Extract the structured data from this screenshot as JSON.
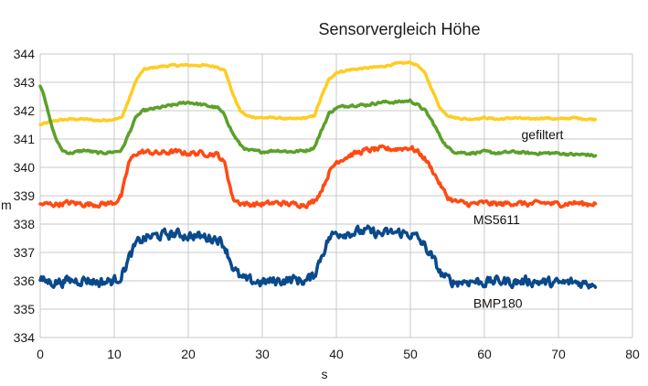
{
  "chart_data": {
    "type": "line",
    "title": "Sensorvergleich Höhe",
    "xlabel": "s",
    "ylabel": "m",
    "xlim": [
      0,
      80
    ],
    "ylim": [
      334,
      344
    ],
    "x_ticks": [
      0,
      10,
      20,
      30,
      40,
      50,
      60,
      70,
      80
    ],
    "y_ticks": [
      334,
      335,
      336,
      337,
      338,
      339,
      340,
      341,
      342,
      343,
      344
    ],
    "grid": true,
    "legend": "none",
    "annotations": [
      {
        "text": "gefiltert",
        "x": 65,
        "y": 341.0
      },
      {
        "text": "MS5611",
        "x": 58.5,
        "y": 338.0
      },
      {
        "text": "BMP180",
        "x": 58.5,
        "y": 335.05
      }
    ],
    "series": [
      {
        "color": "#ffcc22",
        "width": 3.5,
        "x": [
          0,
          2,
          4,
          6,
          8,
          10,
          11,
          12,
          13,
          14,
          16,
          18,
          20,
          22,
          24,
          25,
          26,
          27,
          28,
          30,
          32,
          34,
          36,
          37,
          38,
          39,
          40,
          42,
          44,
          46,
          48,
          50,
          51,
          52,
          53,
          54,
          55,
          56,
          58,
          60,
          62,
          64,
          66,
          68,
          70,
          72,
          74,
          75
        ],
        "values": [
          341.5,
          341.65,
          341.7,
          341.7,
          341.65,
          341.7,
          341.75,
          342.4,
          343.1,
          343.45,
          343.55,
          343.6,
          343.6,
          343.6,
          343.55,
          343.4,
          342.6,
          342.0,
          341.8,
          341.75,
          341.75,
          341.7,
          341.75,
          341.8,
          342.5,
          343.1,
          343.35,
          343.45,
          343.5,
          343.55,
          343.65,
          343.7,
          343.6,
          343.3,
          342.7,
          342.1,
          341.85,
          341.75,
          341.7,
          341.75,
          341.7,
          341.75,
          341.7,
          341.75,
          341.7,
          341.75,
          341.7,
          341.7
        ],
        "noise": 0.05
      },
      {
        "color": "#5aa02a",
        "width": 3.5,
        "x": [
          0,
          0.5,
          1,
          1.5,
          2,
          2.5,
          3,
          4,
          5,
          6,
          8,
          10,
          11,
          12,
          13,
          14,
          16,
          18,
          20,
          22,
          24,
          25,
          26,
          27,
          28,
          30,
          32,
          34,
          36,
          37,
          38,
          39,
          40,
          42,
          44,
          46,
          48,
          50,
          51,
          52,
          53,
          54,
          55,
          56,
          58,
          60,
          62,
          64,
          66,
          68,
          70,
          72,
          74,
          75
        ],
        "values": [
          342.9,
          342.6,
          342.0,
          341.5,
          341.1,
          340.8,
          340.6,
          340.5,
          340.55,
          340.6,
          340.5,
          340.55,
          340.6,
          341.2,
          341.8,
          342.0,
          342.1,
          342.2,
          342.3,
          342.2,
          342.1,
          341.8,
          341.2,
          340.8,
          340.6,
          340.55,
          340.6,
          340.55,
          340.6,
          340.7,
          341.3,
          341.9,
          342.1,
          342.2,
          342.2,
          342.3,
          342.3,
          342.35,
          342.2,
          342.0,
          341.6,
          341.1,
          340.7,
          340.55,
          340.5,
          340.55,
          340.5,
          340.55,
          340.5,
          340.5,
          340.5,
          340.45,
          340.45,
          340.4
        ],
        "noise": 0.07
      },
      {
        "color": "#ff4a12",
        "width": 3.5,
        "x": [
          0,
          2,
          4,
          6,
          8,
          10,
          11,
          11.5,
          12,
          13,
          14,
          16,
          18,
          20,
          22,
          24,
          25,
          25.5,
          26,
          27,
          28,
          30,
          32,
          34,
          36,
          37,
          38,
          39,
          40,
          42,
          44,
          46,
          48,
          50,
          51,
          52,
          53,
          54,
          55,
          56,
          58,
          60,
          62,
          64,
          66,
          68,
          70,
          72,
          74,
          75
        ],
        "values": [
          338.7,
          338.7,
          338.75,
          338.7,
          338.7,
          338.75,
          339.0,
          339.6,
          340.2,
          340.5,
          340.55,
          340.5,
          340.55,
          340.5,
          340.5,
          340.45,
          340.1,
          339.5,
          338.9,
          338.75,
          338.7,
          338.7,
          338.75,
          338.7,
          338.7,
          338.8,
          339.2,
          339.8,
          340.2,
          340.45,
          340.6,
          340.65,
          340.65,
          340.7,
          340.55,
          340.3,
          339.9,
          339.4,
          338.95,
          338.8,
          338.7,
          338.75,
          338.7,
          338.75,
          338.7,
          338.75,
          338.7,
          338.75,
          338.7,
          338.75
        ],
        "noise": 0.14
      },
      {
        "color": "#0a4a8c",
        "width": 3.5,
        "x": [
          0,
          2,
          4,
          6,
          8,
          10,
          11,
          12,
          13,
          14,
          16,
          18,
          20,
          22,
          24,
          25,
          26,
          27,
          28,
          30,
          32,
          34,
          36,
          37,
          38,
          39,
          40,
          42,
          44,
          46,
          48,
          50,
          51,
          52,
          53,
          54,
          55,
          56,
          58,
          60,
          62,
          64,
          66,
          68,
          70,
          72,
          74,
          75
        ],
        "values": [
          336.0,
          335.95,
          336.0,
          336.05,
          335.95,
          336.0,
          336.2,
          336.8,
          337.3,
          337.5,
          337.6,
          337.65,
          337.6,
          337.55,
          337.5,
          337.2,
          336.5,
          336.1,
          336.0,
          335.95,
          336.0,
          336.05,
          336.0,
          336.2,
          336.9,
          337.5,
          337.7,
          337.7,
          337.75,
          337.65,
          337.7,
          337.65,
          337.5,
          337.2,
          336.8,
          336.3,
          336.05,
          335.95,
          336.0,
          335.95,
          336.0,
          335.95,
          336.0,
          335.95,
          335.9,
          335.95,
          335.9,
          335.95
        ],
        "noise": 0.28
      }
    ]
  }
}
